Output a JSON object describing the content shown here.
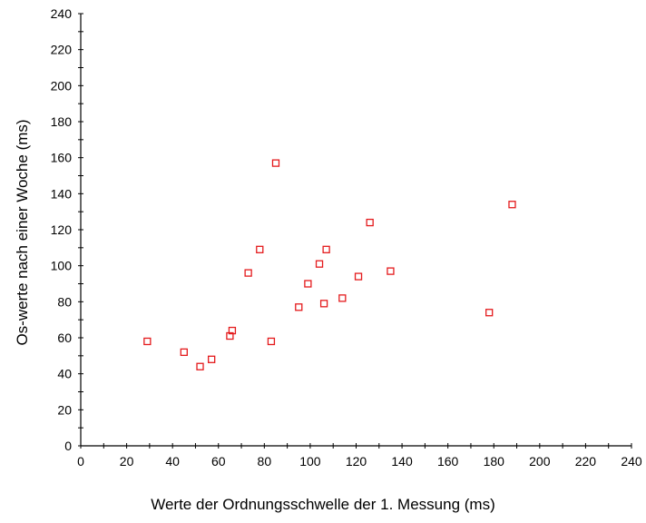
{
  "chart_data": {
    "type": "scatter",
    "title": "",
    "xlabel": "Werte der Ordnungsschwelle der 1. Messung (ms)",
    "ylabel": "Os-werte nach einer Woche (ms)",
    "xlim": [
      0,
      240
    ],
    "ylim": [
      0,
      240
    ],
    "x_ticks": [
      0,
      20,
      40,
      60,
      80,
      100,
      120,
      140,
      160,
      180,
      200,
      220,
      240
    ],
    "y_ticks": [
      0,
      20,
      40,
      60,
      80,
      100,
      120,
      140,
      160,
      180,
      200,
      220,
      240
    ],
    "grid": false,
    "marker": "open-square",
    "color": "#e41a1c",
    "points": [
      {
        "x": 29,
        "y": 58
      },
      {
        "x": 45,
        "y": 52
      },
      {
        "x": 52,
        "y": 44
      },
      {
        "x": 57,
        "y": 48
      },
      {
        "x": 65,
        "y": 61
      },
      {
        "x": 66,
        "y": 64
      },
      {
        "x": 73,
        "y": 96
      },
      {
        "x": 78,
        "y": 109
      },
      {
        "x": 83,
        "y": 58
      },
      {
        "x": 85,
        "y": 157
      },
      {
        "x": 95,
        "y": 77
      },
      {
        "x": 99,
        "y": 90
      },
      {
        "x": 104,
        "y": 101
      },
      {
        "x": 106,
        "y": 79
      },
      {
        "x": 107,
        "y": 109
      },
      {
        "x": 114,
        "y": 82
      },
      {
        "x": 121,
        "y": 94
      },
      {
        "x": 126,
        "y": 124
      },
      {
        "x": 135,
        "y": 97
      },
      {
        "x": 178,
        "y": 74
      },
      {
        "x": 188,
        "y": 134
      }
    ]
  }
}
